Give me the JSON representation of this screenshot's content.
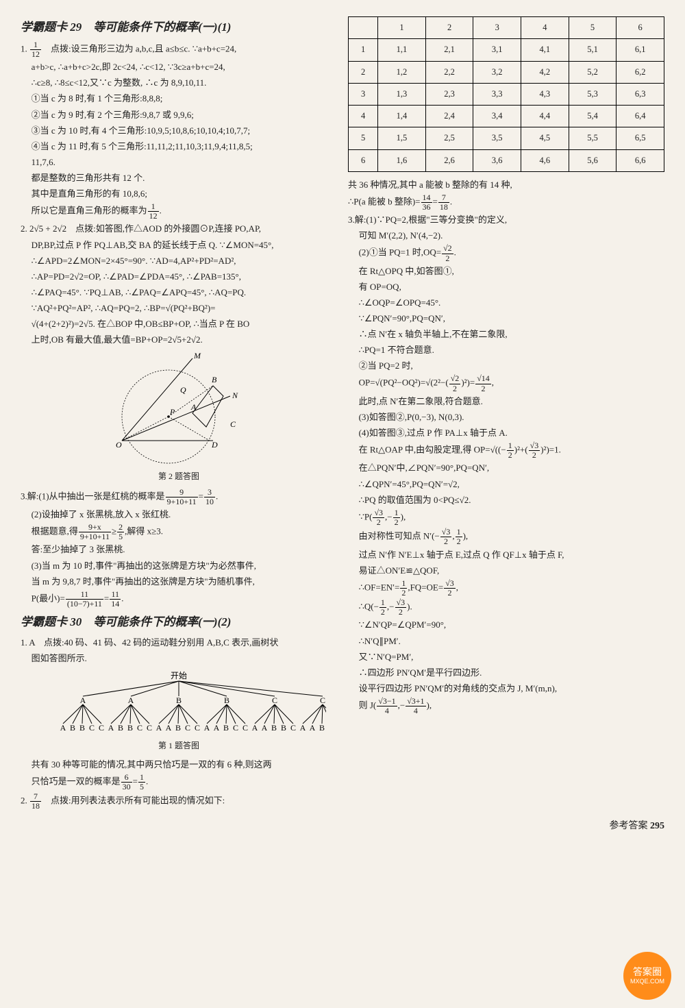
{
  "left": {
    "section29": {
      "title": "学霸题卡 29　等可能条件下的概率(一)(1)",
      "q1": {
        "head": "1. ",
        "ans_frac_num": "1",
        "ans_frac_den": "12",
        "hint_label": "　点拨:",
        "l1": "设三角形三边为 a,b,c,且 a≤b≤c. ∵a+b+c=24,",
        "l2": "a+b>c, ∴a+b+c>2c,即 2c<24, ∴c<12, ∵3c≥a+b+c=24,",
        "l3": "∴c≥8, ∴8≤c<12,又∵c 为整数, ∴c 为 8,9,10,11.",
        "l4": "①当 c 为 8 时,有 1 个三角形:8,8,8;",
        "l5": "②当 c 为 9 时,有 2 个三角形:9,8,7 或 9,9,6;",
        "l6": "③当 c 为 10 时,有 4 个三角形:10,9,5;10,8,6;10,10,4;10,7,7;",
        "l7": "④当 c 为 11 时,有 5 个三角形:11,11,2;11,10,3;11,9,4;11,8,5;",
        "l7b": "11,7,6.",
        "l8": "都是整数的三角形共有 12 个.",
        "l9": "其中是直角三角形的有 10,8,6;",
        "l10a": "所以它是直角三角形的概率为",
        "l10_num": "1",
        "l10_den": "12",
        "l10b": "."
      },
      "q2": {
        "head": "2. 2√5 + 2√2　",
        "hint_label": "点拨:",
        "l1": "如答图,作△AOD 的外接圆⊙P,连接 PO,AP,",
        "l2": "DP,BP,过点 P 作 PQ⊥AB,交 BA 的延长线于点 Q. ∵∠MON=45°,",
        "l3": "∴∠APD=2∠MON=2×45°=90°. ∵AD=4,AP²+PD²=AD²,",
        "l4": "∴AP=PD=2√2=OP, ∴∠PAD=∠PDA=45°, ∴∠PAB=135°,",
        "l5": "∴∠PAQ=45°. ∵PQ⊥AB, ∴∠PAQ=∠APQ=45°, ∴AQ=PQ.",
        "l6": "∵AQ²+PQ²=AP², ∴AQ=PQ=2, ∴BP=√(PQ²+BQ²)=",
        "l7": "√(4+(2+2)²)=2√5. 在△BOP 中,OB≤BP+OP, ∴当点 P 在 BO",
        "l8": "上时,OB 有最大值,最大值=BP+OP=2√5+2√2.",
        "caption": "第 2 题答图"
      },
      "q3": {
        "head": "3.解:",
        "p1a": "(1)从中抽出一张是红桃的概率是",
        "p1_num": "9",
        "p1_den": "9+10+11",
        "p1_eq": "=",
        "p1r_num": "3",
        "p1r_den": "10",
        "p1b": ".",
        "p2": "(2)设抽掉了 x 张黑桃,放入 x 张红桃.",
        "p3a": "根据题意,得",
        "p3_num": "9+x",
        "p3_den": "9+10+11",
        "p3_mid": "≥",
        "p3r_num": "2",
        "p3r_den": "5",
        "p3b": ",解得 x≥3.",
        "p4": "答:至少抽掉了 3 张黑桃.",
        "p5": "(3)当 m 为 10 时,事件\"再抽出的这张牌是方块\"为必然事件,",
        "p6": "当 m 为 9,8,7 时,事件\"再抽出的这张牌是方块\"为随机事件,",
        "p7a": "P(最小)=",
        "p7_num": "11",
        "p7_den": "(10−7)+11",
        "p7_eq": "=",
        "p7r_num": "11",
        "p7r_den": "14",
        "p7b": "."
      }
    },
    "section30": {
      "title": "学霸题卡 30　等可能条件下的概率(一)(2)",
      "q1": {
        "head": "1. A　",
        "hint_label": "点拨:",
        "l1": "40 码、41 码、42 码的运动鞋分别用 A,B,C 表示,画树状",
        "l2": "图如答图所示.",
        "tree_start": "开始",
        "tree_top": [
          "A",
          "A",
          "B",
          "B",
          "C",
          "C"
        ],
        "tree_leaves": "A B B C C  A B B C C  A A B C C  A A B C C  A A B B C  A A B B C",
        "caption": "第 1 题答图",
        "l3": "共有 30 种等可能的情况,其中两只恰巧是一双的有 6 种,则这两",
        "l4a": "只恰巧是一双的概率是",
        "l4_num": "6",
        "l4_den": "30",
        "l4_eq": "=",
        "l4r_num": "1",
        "l4r_den": "5",
        "l4b": "."
      },
      "q2": {
        "head": "2. ",
        "ans_num": "7",
        "ans_den": "18",
        "hint_label": "　点拨:",
        "l1": "用列表法表示所有可能出现的情况如下:"
      }
    }
  },
  "right": {
    "table": {
      "header": [
        "",
        "1",
        "2",
        "3",
        "4",
        "5",
        "6"
      ],
      "rows": [
        [
          "1",
          "1,1",
          "2,1",
          "3,1",
          "4,1",
          "5,1",
          "6,1"
        ],
        [
          "2",
          "1,2",
          "2,2",
          "3,2",
          "4,2",
          "5,2",
          "6,2"
        ],
        [
          "3",
          "1,3",
          "2,3",
          "3,3",
          "4,3",
          "5,3",
          "6,3"
        ],
        [
          "4",
          "1,4",
          "2,4",
          "3,4",
          "4,4",
          "5,4",
          "6,4"
        ],
        [
          "5",
          "1,5",
          "2,5",
          "3,5",
          "4,5",
          "5,5",
          "6,5"
        ],
        [
          "6",
          "1,6",
          "2,6",
          "3,6",
          "4,6",
          "5,6",
          "6,6"
        ]
      ]
    },
    "after_table": {
      "l1": "共 36 种情况,其中 a 能被 b 整除的有 14 种,",
      "l2a": "∴P(a 能被 b 整除)=",
      "l2_num": "14",
      "l2_den": "36",
      "l2_eq": "=",
      "l2r_num": "7",
      "l2r_den": "18",
      "l2b": "."
    },
    "q3": {
      "head": "3.解:",
      "p1": "(1)∵PQ=2,根据\"三等分变换\"的定义,",
      "p2": "可知 M′(2,2), N′(4,−2).",
      "p3a": "(2)①当 PQ=1 时,OQ=",
      "p3_num": "√2",
      "p3_den": "2",
      "p3b": ".",
      "p4": "在 Rt△OPQ 中,如答图①,",
      "p5": "有 OP=OQ,",
      "p6": "∴∠OQP=∠OPQ=45°.",
      "p7": "∵∠PQN′=90°,PQ=QN′,",
      "p8": "∴点 N′在 x 轴负半轴上,不在第二象限,",
      "p9": "∴PQ=1 不符合题意.",
      "p10": "②当 PQ=2 时,",
      "p11a": "OP=√(PQ²−OQ²)=√(2²−(",
      "p11_num": "√2",
      "p11_den": "2",
      "p11b": ")²)=",
      "p11r_num": "√14",
      "p11r_den": "2",
      "p11c": ",",
      "p12": "此时,点 N′在第二象限,符合题意.",
      "p13": "(3)如答图②,P(0,−3), N(0,3).",
      "p14": "(4)如答图③,过点 P 作 PA⊥x 轴于点 A.",
      "p15a": "在 Rt△OAP 中,由勾股定理,得 OP=√((−",
      "p15_num1": "1",
      "p15_den1": "2",
      "p15b": ")²+(",
      "p15_num2": "√3",
      "p15_den2": "2",
      "p15c": ")²)=1.",
      "p16": "在△PQN′中,∠PQN′=90°,PQ=QN′,",
      "p17": "∴∠QPN′=45°,PQ=QN′=√2,",
      "p18": "∴PQ 的取值范围为 0<PQ≤√2.",
      "p19a": "∵P(",
      "p19_num1": "√3",
      "p19_den1": "2",
      "p19b": ",−",
      "p19_num2": "1",
      "p19_den2": "2",
      "p19c": "),",
      "p20a": "由对称性可知点 N′(−",
      "p20_num1": "√3",
      "p20_den1": "2",
      "p20b": ",",
      "p20_num2": "1",
      "p20_den2": "2",
      "p20c": "),",
      "p21": "过点 N′作 N′E⊥x 轴于点 E,过点 Q 作 QF⊥x 轴于点 F,",
      "p22": "易证△ON′E≌△QOF,",
      "p23a": "∴OF=EN′=",
      "p23_num1": "1",
      "p23_den1": "2",
      "p23b": ",FQ=OE=",
      "p23_num2": "√3",
      "p23_den2": "2",
      "p23c": ",",
      "p24a": "∴Q(−",
      "p24_num1": "1",
      "p24_den1": "2",
      "p24b": ",−",
      "p24_num2": "√3",
      "p24_den2": "2",
      "p24c": ").",
      "p25": "∵∠N′QP=∠QPM′=90°,",
      "p26": "∴N′Q∥PM′.",
      "p27": "又∵N′Q=PM′,",
      "p28": "∴四边形 PN′QM′是平行四边形.",
      "p29": "设平行四边形 PN′QM′的对角线的交点为 J, M′(m,n),",
      "p30a": "则 J(",
      "p30_num1": "√3−1",
      "p30_den1": "4",
      "p30b": ",−",
      "p30_num2": "√3+1",
      "p30_den2": "4",
      "p30c": "),"
    }
  },
  "footer": {
    "label": "参考答案",
    "page": "295"
  },
  "logo": {
    "top": "答案圈",
    "bottom": "MXQE.COM"
  },
  "colors": {
    "bg": "#f5f1ea",
    "text": "#222222",
    "accent": "#ff8c1a"
  }
}
